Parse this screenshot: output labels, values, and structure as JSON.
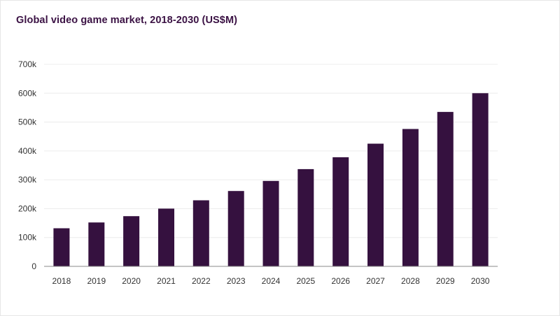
{
  "chart_data": {
    "type": "bar",
    "title": "Global video game market, 2018-2030 (US$M)",
    "xlabel": "",
    "ylabel": "",
    "categories": [
      "2018",
      "2019",
      "2020",
      "2021",
      "2022",
      "2023",
      "2024",
      "2025",
      "2026",
      "2027",
      "2028",
      "2029",
      "2030"
    ],
    "values": [
      132000,
      152000,
      174000,
      200000,
      229000,
      261000,
      296000,
      337000,
      378000,
      425000,
      476000,
      535000,
      600000
    ],
    "ylim": [
      0,
      700000
    ],
    "yticks": [
      0,
      100000,
      200000,
      300000,
      400000,
      500000,
      600000,
      700000
    ],
    "ytick_labels": [
      "0",
      "100k",
      "200k",
      "300k",
      "400k",
      "500k",
      "600k",
      "700k"
    ],
    "grid": true,
    "legend": "none",
    "bar_color": "#35113f"
  }
}
